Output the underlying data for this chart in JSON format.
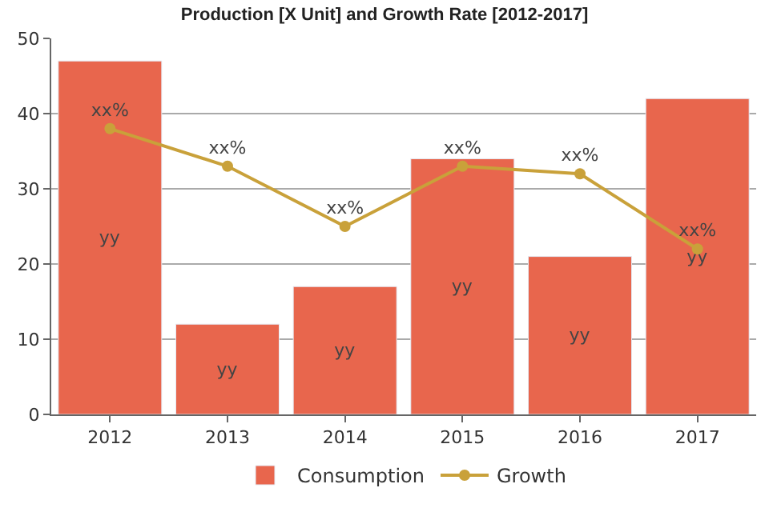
{
  "chart_data": {
    "type": "bar",
    "title": "Production [X Unit] and Growth Rate [2012-2017]",
    "categories": [
      "2012",
      "2013",
      "2014",
      "2015",
      "2016",
      "2017"
    ],
    "series": [
      {
        "name": "Consumption",
        "color": "#e8664d",
        "values": [
          47,
          12,
          17,
          34,
          21,
          42
        ],
        "value_labels": [
          "yy",
          "yy",
          "yy",
          "yy",
          "yy",
          "yy"
        ]
      },
      {
        "name": "Growth",
        "type": "line",
        "color": "#c9a13a",
        "values": [
          38,
          33,
          25,
          33,
          32,
          22
        ],
        "value_labels": [
          "xx%",
          "xx%",
          "xx%",
          "xx%",
          "xx%",
          "xx%"
        ],
        "marker": "circle",
        "line_style": "solid"
      }
    ],
    "ylim": [
      0,
      50
    ],
    "yticks": [
      0,
      10,
      20,
      30,
      40,
      50
    ],
    "grid": "y",
    "legend": "bottom"
  }
}
